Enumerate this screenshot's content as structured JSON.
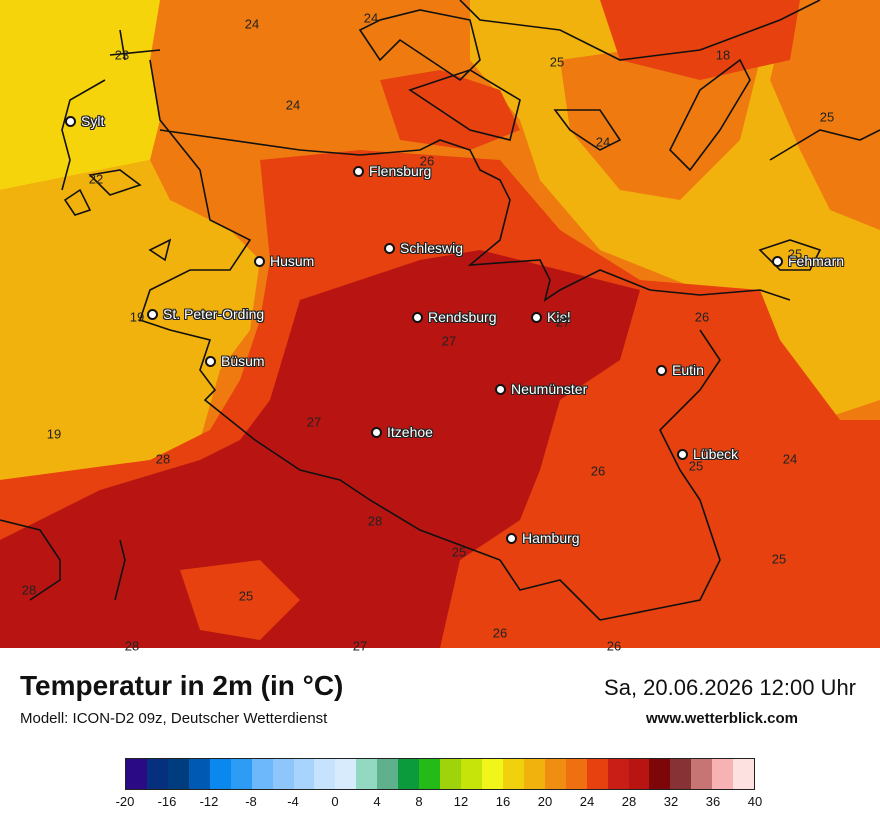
{
  "map": {
    "cities": [
      {
        "name": "Sylt"
      },
      {
        "name": "Flensburg"
      },
      {
        "name": "Schleswig"
      },
      {
        "name": "Husum"
      },
      {
        "name": "St. Peter-Ording"
      },
      {
        "name": "Rendsburg"
      },
      {
        "name": "Kiel"
      },
      {
        "name": "Fehmarn"
      },
      {
        "name": "Büsum"
      },
      {
        "name": "Neumünster"
      },
      {
        "name": "Eutin"
      },
      {
        "name": "Itzehoe"
      },
      {
        "name": "Lübeck"
      },
      {
        "name": "Hamburg"
      }
    ],
    "temperature_labels": [
      "24",
      "24",
      "23",
      "25",
      "18",
      "24",
      "25",
      "24",
      "26",
      "22",
      "25",
      "19",
      "27",
      "26",
      "27",
      "27",
      "19",
      "28",
      "26",
      "25",
      "24",
      "28",
      "25",
      "25",
      "28",
      "25",
      "26",
      "28",
      "27",
      "26"
    ],
    "colors": {
      "c18": "#f5d40c",
      "c20": "#f2b20e",
      "c22": "#ef7b10",
      "c24": "#e6410f",
      "c26": "#b81512",
      "coast": "#111111"
    }
  },
  "footer": {
    "title": "Temperatur in 2m (in °C)",
    "model": "Modell: ICON-D2 09z, Deutscher Wetterdienst",
    "datetime": "Sa, 20.06.2026 12:00 Uhr",
    "website": "www.wetterblick.com"
  },
  "legend": {
    "colors": [
      "#2b0a86",
      "#06307e",
      "#003d7e",
      "#0059b3",
      "#0a88ee",
      "#2d9cf5",
      "#6db8fb",
      "#8ec6fb",
      "#a7d3fc",
      "#c6e2fc",
      "#d7ebfd",
      "#93d8c0",
      "#5fb08c",
      "#0b9a3c",
      "#24ba17",
      "#9fd40c",
      "#c7e40a",
      "#f2f51a",
      "#f1d00d",
      "#f2b20e",
      "#ef8e10",
      "#ef7010",
      "#e6410f",
      "#c81e15",
      "#b81512",
      "#7c0608",
      "#873336",
      "#c67474",
      "#f7b3b3",
      "#fde0e0"
    ],
    "ticks": [
      "-20",
      "-16",
      "-12",
      "-8",
      "-4",
      "0",
      "4",
      "8",
      "12",
      "16",
      "20",
      "24",
      "28",
      "32",
      "36",
      "40"
    ]
  }
}
